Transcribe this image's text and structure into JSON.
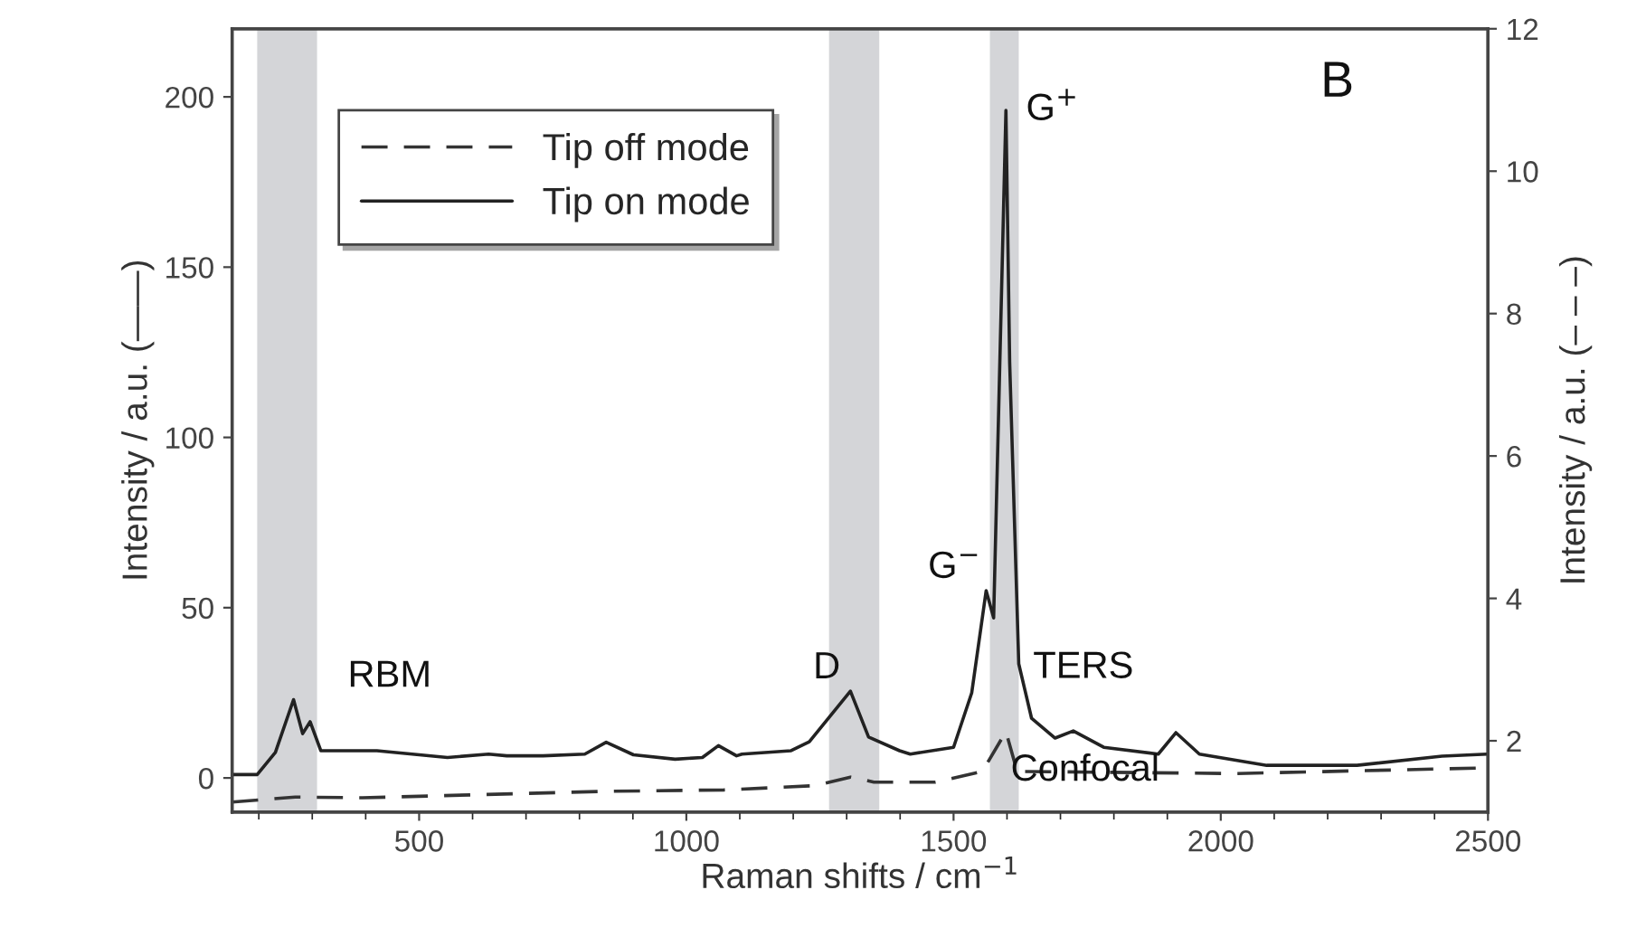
{
  "chart_data": {
    "type": "line",
    "xlabel": "Raman shifts / cm$^{−1}$",
    "ylabel": "Intensity / a.u. (——)",
    "y2label": "Intensity / a.u. (– – –)",
    "series": [
      {
        "name": "Tip off mode",
        "color": "#333333",
        "line_style": "dashed",
        "axis": "y2",
        "x": [
          150,
          268,
          394,
          844,
          1070,
          1240,
          1307,
          1351,
          1466,
          1554,
          1598,
          1619,
          2028,
          2499
        ],
        "values": [
          1.14,
          1.21,
          1.2,
          1.29,
          1.31,
          1.37,
          1.49,
          1.42,
          1.42,
          1.57,
          2.13,
          1.57,
          1.54,
          1.62
        ]
      },
      {
        "name": "Tip on mode",
        "color": "#222222",
        "line_style": "solid",
        "x": [
          150,
          197,
          231,
          265,
          282,
          296,
          316,
          421,
          553,
          630,
          664,
          732,
          810,
          850,
          901,
          979,
          1030,
          1060,
          1094,
          1104,
          1196,
          1230,
          1307,
          1341,
          1399,
          1419,
          1500,
          1534,
          1561,
          1575,
          1598,
          1605,
          1622,
          1646,
          1690,
          1724,
          1781,
          1883,
          1916,
          1960,
          2086,
          2255,
          2414,
          2499
        ],
        "values": [
          1,
          1,
          7.5,
          23,
          13,
          16.5,
          8,
          8,
          6,
          7,
          6.5,
          6.5,
          7,
          10.5,
          6.8,
          5.5,
          6,
          9.5,
          6.5,
          7,
          8,
          10.6,
          25.5,
          12,
          8,
          7,
          9,
          25,
          55,
          47,
          196,
          122,
          33.5,
          17.5,
          11.7,
          13.8,
          9,
          7,
          13.3,
          7,
          3.7,
          3.7,
          6.4,
          7
        ]
      }
    ],
    "xlim": [
      150,
      2500
    ],
    "xticks": [
      500,
      1000,
      1500,
      2000,
      2500
    ],
    "ylim": [
      -10,
      220
    ],
    "yticks": [
      0,
      50,
      100,
      150,
      200
    ],
    "y2lim": [
      1,
      12
    ],
    "y2ticks": [
      2,
      4,
      6,
      8,
      10,
      12
    ],
    "bands": [
      {
        "axis": "x",
        "from": 197,
        "to": 309,
        "color": "#d4d5d8"
      },
      {
        "axis": "x",
        "from": 1267,
        "to": 1361,
        "color": "#d4d5d8"
      },
      {
        "axis": "x",
        "from": 1568,
        "to": 1622,
        "color": "#d4d5d8"
      }
    ],
    "annotations": [
      {
        "text": "RBM",
        "x": 263,
        "y": 23
      },
      {
        "text": "D",
        "x": 1307,
        "y": 25.5
      },
      {
        "text": "G$^{−}$",
        "x": 1561,
        "y": 55
      },
      {
        "text": "G$^{+}$",
        "x": 1598,
        "y": 196
      },
      {
        "text": "TERS",
        "x": 1724,
        "y": 13.8
      },
      "Confocal",
      "B"
    ],
    "legend": "top left",
    "grid": false
  }
}
